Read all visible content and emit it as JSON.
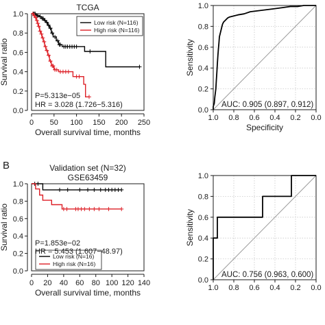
{
  "figure": {
    "panel_b_label": "B"
  },
  "chart_data": [
    {
      "id": "km_tcga",
      "type": "line",
      "subtype": "kaplan-meier",
      "title": "TCGA",
      "subtitle": "",
      "xlabel": "Overall survival time, months",
      "ylabel": "Survival ratio",
      "xlim": [
        0,
        250
      ],
      "ylim": [
        0,
        1.0
      ],
      "xticks": [
        0,
        50,
        100,
        150,
        200,
        250
      ],
      "yticks": [
        0.0,
        0.2,
        0.4,
        0.6,
        0.8,
        1.0
      ],
      "ytick_labels": [
        "0.0",
        "0.2",
        "0.4",
        "0.6",
        "0.8",
        "1.0"
      ],
      "grid": false,
      "legend_position": "top-right",
      "annotations": [
        "P=5.313e−05",
        "HR = 3.028 (1.726−5.316)"
      ],
      "series": [
        {
          "name": "Low risk (N=116)",
          "color": "#000000",
          "steps": [
            [
              0,
              1.0
            ],
            [
              10,
              0.98
            ],
            [
              17,
              0.97
            ],
            [
              22,
              0.95
            ],
            [
              28,
              0.93
            ],
            [
              32,
              0.91
            ],
            [
              36,
              0.88
            ],
            [
              40,
              0.85
            ],
            [
              44,
              0.8
            ],
            [
              48,
              0.76
            ],
            [
              55,
              0.72
            ],
            [
              60,
              0.68
            ],
            [
              68,
              0.66
            ],
            [
              110,
              0.66
            ],
            [
              118,
              0.61
            ],
            [
              160,
              0.61
            ],
            [
              165,
              0.45
            ],
            [
              240,
              0.45
            ]
          ],
          "censor": [
            4,
            6,
            8,
            12,
            14,
            19,
            24,
            26,
            30,
            34,
            38,
            42,
            46,
            52,
            58,
            62,
            64,
            72,
            76,
            80,
            85,
            90,
            95,
            100,
            130,
            240
          ]
        },
        {
          "name": "High risk (N=116)",
          "color": "#dd1f26",
          "steps": [
            [
              0,
              1.0
            ],
            [
              5,
              0.98
            ],
            [
              8,
              0.96
            ],
            [
              11,
              0.93
            ],
            [
              13,
              0.9
            ],
            [
              15,
              0.87
            ],
            [
              18,
              0.82
            ],
            [
              21,
              0.79
            ],
            [
              23,
              0.75
            ],
            [
              26,
              0.71
            ],
            [
              29,
              0.66
            ],
            [
              32,
              0.62
            ],
            [
              36,
              0.57
            ],
            [
              40,
              0.51
            ],
            [
              44,
              0.46
            ],
            [
              50,
              0.42
            ],
            [
              60,
              0.4
            ],
            [
              88,
              0.4
            ],
            [
              92,
              0.35
            ],
            [
              112,
              0.35
            ],
            [
              116,
              0.27
            ],
            [
              120,
              0.14
            ],
            [
              128,
              0.14
            ]
          ],
          "censor": [
            3,
            6,
            9,
            12,
            14,
            16,
            19,
            22,
            25,
            28,
            31,
            34,
            38,
            42,
            46,
            48,
            52,
            56,
            64,
            70,
            76,
            82,
            100,
            106,
            128
          ]
        }
      ]
    },
    {
      "id": "roc_tcga",
      "type": "line",
      "subtype": "roc",
      "title": "",
      "xlabel": "Specificity",
      "ylabel": "Sensitivity",
      "xlim": [
        1.0,
        0.0
      ],
      "ylim": [
        0.0,
        1.0
      ],
      "xticks": [
        1.0,
        0.8,
        0.6,
        0.4,
        0.2,
        0.0
      ],
      "xtick_labels": [
        "1.0",
        "0.8",
        "0.6",
        "0.4",
        "0.2",
        "0.0"
      ],
      "yticks": [
        0.0,
        0.2,
        0.4,
        0.6,
        0.8,
        1.0
      ],
      "ytick_labels": [
        "0.0",
        "0.2",
        "0.4",
        "0.6",
        "0.8",
        "1.0"
      ],
      "grid": true,
      "annotation": "AUC: 0.905 (0.897, 0.912)",
      "series": [
        {
          "color": "#000000",
          "points": [
            [
              1.0,
              0.0
            ],
            [
              1.0,
              0.03
            ],
            [
              0.99,
              0.06
            ],
            [
              0.985,
              0.12
            ],
            [
              0.975,
              0.2
            ],
            [
              0.97,
              0.28
            ],
            [
              0.965,
              0.36
            ],
            [
              0.96,
              0.44
            ],
            [
              0.955,
              0.52
            ],
            [
              0.95,
              0.58
            ],
            [
              0.945,
              0.64
            ],
            [
              0.94,
              0.7
            ],
            [
              0.93,
              0.74
            ],
            [
              0.92,
              0.78
            ],
            [
              0.91,
              0.82
            ],
            [
              0.9,
              0.84
            ],
            [
              0.88,
              0.86
            ],
            [
              0.86,
              0.88
            ],
            [
              0.84,
              0.89
            ],
            [
              0.8,
              0.9
            ],
            [
              0.76,
              0.91
            ],
            [
              0.7,
              0.92
            ],
            [
              0.64,
              0.94
            ],
            [
              0.56,
              0.95
            ],
            [
              0.48,
              0.96
            ],
            [
              0.4,
              0.97
            ],
            [
              0.32,
              0.98
            ],
            [
              0.25,
              0.99
            ],
            [
              0.18,
              0.99
            ],
            [
              0.12,
              1.0
            ],
            [
              0.0,
              1.0
            ]
          ]
        }
      ]
    },
    {
      "id": "km_validation",
      "type": "line",
      "subtype": "kaplan-meier",
      "title": "Validation set (N=32)",
      "subtitle": "GSE63459",
      "xlabel": "Overall survival time, months",
      "ylabel": "Survival ratio",
      "xlim": [
        0,
        140
      ],
      "ylim": [
        0,
        1.0
      ],
      "xticks": [
        0,
        20,
        40,
        60,
        80,
        100,
        120,
        140
      ],
      "yticks": [
        0.0,
        0.2,
        0.4,
        0.6,
        0.8,
        1.0
      ],
      "ytick_labels": [
        "0.0",
        "0.2",
        "0.4",
        "0.6",
        "0.8",
        "1.0"
      ],
      "grid": false,
      "legend_position": "bottom-left",
      "annotations": [
        "P=1.853e−02",
        "HR = 5.453 (1.607−48.97)"
      ],
      "series": [
        {
          "name": "Low risk (N=16)",
          "color": "#000000",
          "steps": [
            [
              0,
              1.0
            ],
            [
              12,
              1.0
            ],
            [
              14,
              0.93
            ],
            [
              112,
              0.93
            ]
          ],
          "censor": [
            4,
            8,
            35,
            45,
            60,
            70,
            78,
            86,
            92,
            96,
            100,
            104,
            108,
            112
          ]
        },
        {
          "name": "High risk (N=16)",
          "color": "#dd1f26",
          "steps": [
            [
              0,
              1.0
            ],
            [
              5,
              0.94
            ],
            [
              10,
              0.87
            ],
            [
              14,
              0.81
            ],
            [
              25,
              0.76
            ],
            [
              38,
              0.71
            ],
            [
              112,
              0.71
            ]
          ],
          "censor": [
            40,
            44,
            55,
            58,
            62,
            66,
            72,
            78,
            84,
            96,
            112
          ]
        }
      ]
    },
    {
      "id": "roc_validation",
      "type": "line",
      "subtype": "roc",
      "title": "",
      "xlabel": "",
      "ylabel": "Sensitivity",
      "xlim": [
        1.0,
        0.0
      ],
      "ylim": [
        0.0,
        1.0
      ],
      "xticks": [
        1.0,
        0.8,
        0.6,
        0.4,
        0.2,
        0.0
      ],
      "xtick_labels": [
        "1.0",
        "0.8",
        "0.6",
        "0.4",
        "0.2",
        "0.0"
      ],
      "yticks": [
        0.0,
        0.2,
        0.4,
        0.6,
        0.8,
        1.0
      ],
      "ytick_labels": [
        "0.0",
        "0.2",
        "0.4",
        "0.6",
        "0.8",
        "1.0"
      ],
      "grid": true,
      "annotation": "AUC: 0.756 (0.963, 0.600)",
      "series": [
        {
          "color": "#000000",
          "points": [
            [
              1.0,
              0.0
            ],
            [
              1.0,
              0.4
            ],
            [
              0.96,
              0.4
            ],
            [
              0.96,
              0.6
            ],
            [
              0.52,
              0.6
            ],
            [
              0.52,
              0.8
            ],
            [
              0.24,
              0.8
            ],
            [
              0.24,
              1.0
            ],
            [
              0.0,
              1.0
            ]
          ]
        }
      ]
    }
  ]
}
